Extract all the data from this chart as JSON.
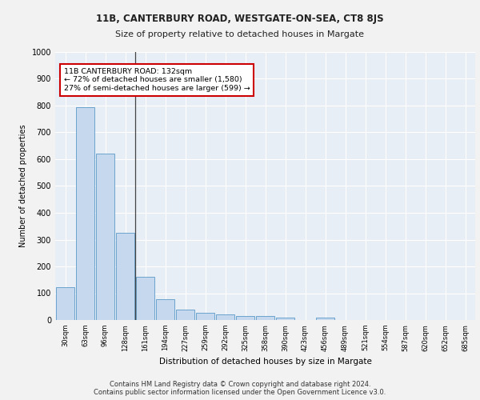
{
  "title1": "11B, CANTERBURY ROAD, WESTGATE-ON-SEA, CT8 8JS",
  "title2": "Size of property relative to detached houses in Margate",
  "xlabel": "Distribution of detached houses by size in Margate",
  "ylabel": "Number of detached properties",
  "categories": [
    "30sqm",
    "63sqm",
    "96sqm",
    "128sqm",
    "161sqm",
    "194sqm",
    "227sqm",
    "259sqm",
    "292sqm",
    "325sqm",
    "358sqm",
    "390sqm",
    "423sqm",
    "456sqm",
    "489sqm",
    "521sqm",
    "554sqm",
    "587sqm",
    "620sqm",
    "652sqm",
    "685sqm"
  ],
  "values": [
    122,
    795,
    622,
    325,
    160,
    78,
    40,
    27,
    22,
    15,
    15,
    8,
    0,
    10,
    0,
    0,
    0,
    0,
    0,
    0,
    0
  ],
  "bar_color": "#c5d8ed",
  "bar_edge_color": "#5a9ac8",
  "annotation_title": "11B CANTERBURY ROAD: 132sqm",
  "annotation_line1": "← 72% of detached houses are smaller (1,580)",
  "annotation_line2": "27% of semi-detached houses are larger (599) →",
  "annotation_box_color": "#ffffff",
  "annotation_box_edge": "#cc0000",
  "ylim": [
    0,
    1000
  ],
  "yticks": [
    0,
    100,
    200,
    300,
    400,
    500,
    600,
    700,
    800,
    900,
    1000
  ],
  "bg_color": "#e8eef5",
  "grid_color": "#ffffff",
  "fig_bg_color": "#f2f2f2",
  "footer1": "Contains HM Land Registry data © Crown copyright and database right 2024.",
  "footer2": "Contains public sector information licensed under the Open Government Licence v3.0."
}
